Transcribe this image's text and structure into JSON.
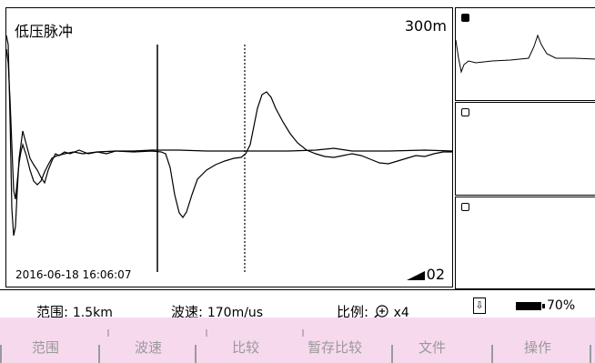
{
  "main_plot": {
    "title": "低压脉冲",
    "range_text": "300m",
    "timestamp": "2016-06-18 16:06:07",
    "gain": "02"
  },
  "thumbnails": [
    {
      "selected": true
    },
    {
      "selected": false
    },
    {
      "selected": false
    }
  ],
  "status_bar": {
    "range_label": "范围:",
    "range_value": "1.5km",
    "velocity_label": "波速:",
    "velocity_value": "170m/us",
    "scale_label": "比例:",
    "scale_value": "x4",
    "zoom_icon": "zoom-in-icon",
    "usb_icon": "usb-icon",
    "battery_percent": "70%"
  },
  "softkeys": {
    "range": "范围",
    "velocity": "波速",
    "compare": "比较",
    "temp_compare": "暂存比较",
    "file": "文件",
    "operate": "操作"
  },
  "colors": {
    "trace": "#000000",
    "softkey_bg": "#f7d9ee"
  }
}
